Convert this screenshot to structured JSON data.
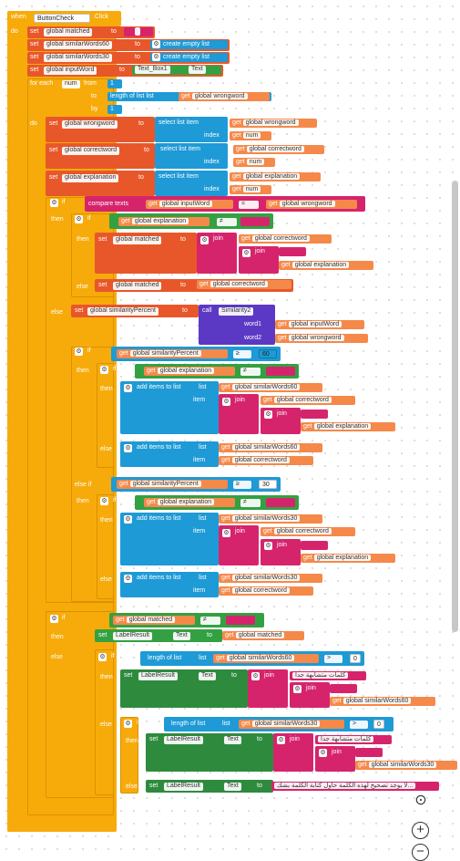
{
  "event": {
    "when": "when",
    "component": "ButtonCheck",
    "event_name": ".Click",
    "do": "do"
  },
  "kw": {
    "set": "set",
    "to": "to",
    "get": "get",
    "for_each": "for each",
    "from": "from",
    "by": "by",
    "do": "do",
    "if": "if",
    "then": "then",
    "else": "else",
    "else_if": "else if",
    "index": "index",
    "list": "list",
    "item": "item",
    "call": "call",
    "join": "join",
    "word1": "word1",
    "word2": "word2"
  },
  "vars": {
    "matched": "global matched",
    "similar60": "global similarWords60",
    "similar30": "global similarWords30",
    "inputWord": "global inputWord",
    "wrongword": "global wrongword",
    "correctword": "global correctword",
    "explanation": "global explanation",
    "similarityPercent": "global similarityPercent",
    "num": "num"
  },
  "blocks": {
    "create_empty_list": "create empty list",
    "textbox": "Text_Box1",
    "text_prop": "Text",
    "length_of_list": "length of list",
    "select_list_item": "select list item",
    "compare_texts": "compare texts",
    "add_items": "add items to list",
    "similarity": "Similarity2",
    "label": "LabelResult",
    "eq": "=",
    "ne": "≠",
    "ge": "≥",
    "gt": ">",
    "n1": "1",
    "n60": "60",
    "n30": "30",
    "n0": "0",
    "empty": " "
  },
  "arabic": {
    "very_similar": "كلمات متشابهة جدا",
    "similar": "كلمات متشابهة جدا",
    "no_fix": "لا يوجد تصحيح لهذه الكلمة حاول كتابة الكلمة بشك..."
  },
  "colors": {
    "event": "#f7ab0a",
    "var": "#e8572a",
    "list": "#1e9ad6",
    "text": "#d6246c",
    "logic": "#33a142",
    "proc": "#5b39c4"
  }
}
